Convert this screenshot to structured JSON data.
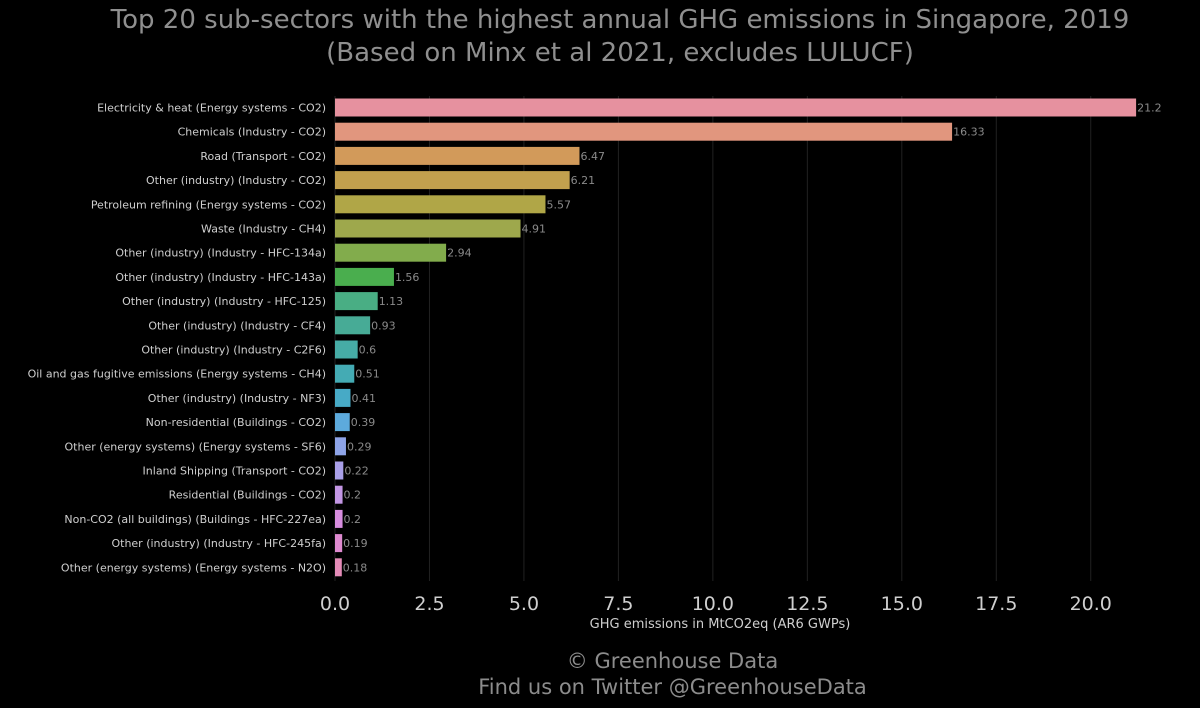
{
  "chart_data": {
    "type": "bar",
    "orientation": "horizontal",
    "title": [
      "Top 20 sub-sectors with the highest annual GHG emissions in Singapore, 2019",
      "(Based on Minx et al 2021, excludes LULUCF)"
    ],
    "xlabel": "GHG emissions in MtCO2eq (AR6 GWPs)",
    "ylabel": "",
    "xlim": [
      0,
      21.7
    ],
    "xticks": [
      0,
      2.5,
      5,
      7.5,
      10,
      12.5,
      15,
      17.5,
      20
    ],
    "xtick_labels": [
      "0.0",
      "2.5",
      "5.0",
      "7.5",
      "10.0",
      "12.5",
      "15.0",
      "17.5",
      "20.0"
    ],
    "grid": "vertical",
    "categories": [
      "Electricity & heat (Energy systems - CO2)",
      "Chemicals (Industry - CO2)",
      "Road (Transport - CO2)",
      "Other (industry) (Industry - CO2)",
      "Petroleum refining (Energy systems - CO2)",
      "Waste (Industry - CH4)",
      "Other (industry) (Industry - HFC-134a)",
      "Other (industry) (Industry - HFC-143a)",
      "Other (industry) (Industry - HFC-125)",
      "Other (industry) (Industry - CF4)",
      "Other (industry) (Industry - C2F6)",
      "Oil and gas fugitive emissions (Energy systems - CH4)",
      "Other (industry) (Industry - NF3)",
      "Non-residential (Buildings - CO2)",
      "Other (energy systems) (Energy systems - SF6)",
      "Inland Shipping (Transport - CO2)",
      "Residential (Buildings - CO2)",
      "Non-CO2 (all buildings) (Buildings - HFC-227ea)",
      "Other (industry) (Industry - HFC-245fa)",
      "Other (energy systems) (Energy systems - N2O)"
    ],
    "values": [
      21.2,
      16.33,
      6.47,
      6.21,
      5.57,
      4.91,
      2.94,
      1.56,
      1.13,
      0.93,
      0.6,
      0.51,
      0.41,
      0.39,
      0.29,
      0.22,
      0.2,
      0.2,
      0.19,
      0.18
    ],
    "value_labels": [
      "21.2",
      "16.33",
      "6.47",
      "6.21",
      "5.57",
      "4.91",
      "2.94",
      "1.56",
      "1.13",
      "0.93",
      "0.6",
      "0.51",
      "0.41",
      "0.39",
      "0.29",
      "0.22",
      "0.2",
      "0.2",
      "0.19",
      "0.18"
    ],
    "colors": [
      "#e6919f",
      "#e1967e",
      "#d29a5a",
      "#c2a04e",
      "#b0a647",
      "#9ea84c",
      "#82ac4c",
      "#4aae4e",
      "#49ae84",
      "#47ab96",
      "#46aca6",
      "#44abb4",
      "#47aac6",
      "#5daadc",
      "#8ea4e8",
      "#a99fe8",
      "#c396e4",
      "#d78ddf",
      "#df8ad0",
      "#e58cb8"
    ]
  },
  "footer": {
    "line1": "© Greenhouse Data",
    "line2": "Find us on Twitter @GreenhouseData"
  },
  "colors": {
    "background": "#000000",
    "grid": "#222222",
    "text": "#cfcfcf",
    "muted_text": "#8f8f8f"
  }
}
